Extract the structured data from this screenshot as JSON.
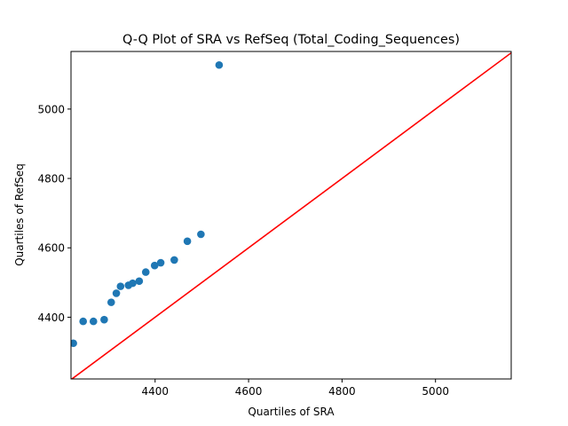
{
  "chart_data": {
    "type": "scatter",
    "title": "Q-Q Plot of SRA vs RefSeq (Total_Coding_Sequences)",
    "xlabel": "Quartiles of SRA",
    "ylabel": "Quartiles of RefSeq",
    "xlim": [
      4220,
      5162
    ],
    "ylim": [
      4222,
      5166
    ],
    "xticks": [
      4400,
      4600,
      4800,
      5000
    ],
    "yticks": [
      4400,
      4600,
      4800,
      5000
    ],
    "grid": false,
    "legend": "none",
    "colors": {
      "points": "#1f77b4",
      "reference_line": "#ff0000"
    },
    "series": [
      {
        "values": [
          {
            "x": 4225,
            "y": 4325
          },
          {
            "x": 4246,
            "y": 4388
          },
          {
            "x": 4268,
            "y": 4388
          },
          {
            "x": 4291,
            "y": 4393
          },
          {
            "x": 4306,
            "y": 4443
          },
          {
            "x": 4317,
            "y": 4469
          },
          {
            "x": 4326,
            "y": 4489
          },
          {
            "x": 4343,
            "y": 4492
          },
          {
            "x": 4352,
            "y": 4498
          },
          {
            "x": 4366,
            "y": 4504
          },
          {
            "x": 4380,
            "y": 4530
          },
          {
            "x": 4399,
            "y": 4549
          },
          {
            "x": 4412,
            "y": 4557
          },
          {
            "x": 4441,
            "y": 4565
          },
          {
            "x": 4469,
            "y": 4619
          },
          {
            "x": 4498,
            "y": 4639
          },
          {
            "x": 4537,
            "y": 5127
          }
        ]
      }
    ],
    "reference_line": {
      "from": [
        4220,
        4220
      ],
      "to": [
        5166,
        5166
      ]
    }
  }
}
